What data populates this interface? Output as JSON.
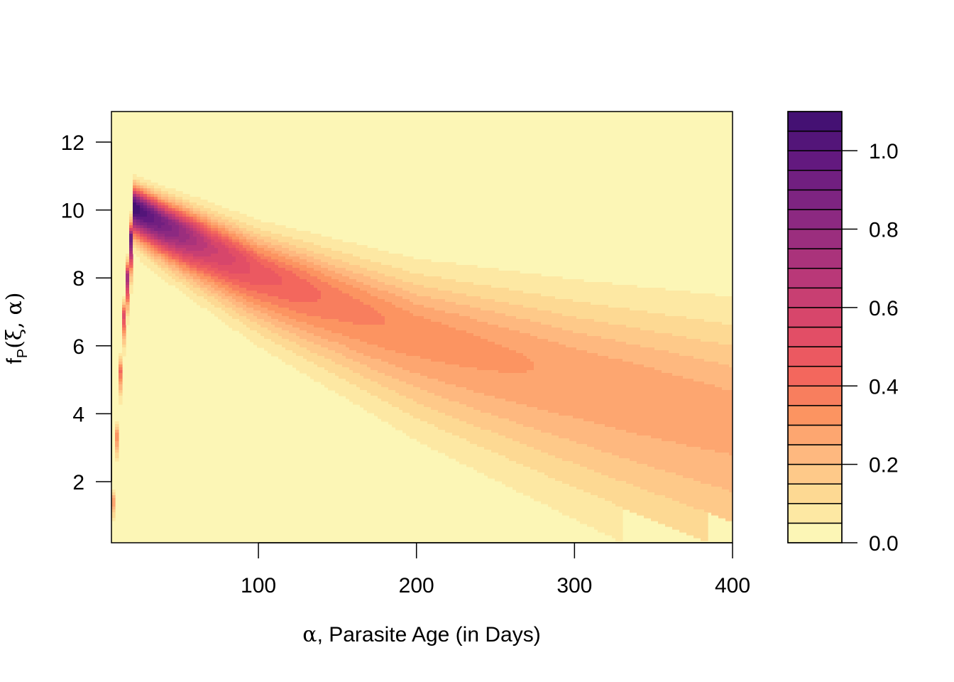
{
  "chart_data": {
    "type": "heatmap",
    "title": "",
    "xlabel": "α, Parasite Age (in Days)",
    "ylabel": "fP(ξ, α)",
    "xlabel_parts": {
      "symbol": "α",
      "rest": ", Parasite Age (in Days)"
    },
    "ylabel_parts": {
      "f": "f",
      "sub": "P",
      "args": "(ξ, α)"
    },
    "xlim": [
      7,
      400
    ],
    "ylim": [
      0.2,
      12.9
    ],
    "x_ticks": [
      100,
      200,
      300,
      400
    ],
    "x_tick_labels": [
      "100",
      "200",
      "300",
      "400"
    ],
    "y_ticks": [
      2,
      4,
      6,
      8,
      10,
      12
    ],
    "y_tick_labels": [
      "2",
      "4",
      "6",
      "8",
      "10",
      "12"
    ],
    "surface": {
      "description_of_values": "filled contour of f_P; ridge rises from 0 at α≈7 to peak ≈1.1 near (α≈22, f≈10), then decays and spreads along a downward-curving ridge",
      "ridge_points": [
        {
          "alpha": 7,
          "f": 0.5,
          "value": 0.25
        },
        {
          "alpha": 14,
          "f": 6.5,
          "value": 0.45
        },
        {
          "alpha": 21,
          "f": 10.1,
          "value": 1.1
        },
        {
          "alpha": 40,
          "f": 9.6,
          "value": 0.9
        },
        {
          "alpha": 70,
          "f": 8.9,
          "value": 0.62
        },
        {
          "alpha": 100,
          "f": 8.2,
          "value": 0.48
        },
        {
          "alpha": 150,
          "f": 7.3,
          "value": 0.38
        },
        {
          "alpha": 200,
          "f": 6.4,
          "value": 0.33
        },
        {
          "alpha": 300,
          "f": 5.1,
          "value": 0.29
        },
        {
          "alpha": 400,
          "f": 3.9,
          "value": 0.27
        }
      ]
    },
    "colorbar": {
      "levels": [
        0.0,
        0.05,
        0.1,
        0.15,
        0.2,
        0.25,
        0.3,
        0.35,
        0.4,
        0.45,
        0.5,
        0.55,
        0.6,
        0.65,
        0.7,
        0.75,
        0.8,
        0.85,
        0.9,
        0.95,
        1.0,
        1.05,
        1.1
      ],
      "tick_values": [
        0.0,
        0.2,
        0.4,
        0.6,
        0.8,
        1.0
      ],
      "tick_labels": [
        "0.0",
        "0.2",
        "0.4",
        "0.6",
        "0.8",
        "1.0"
      ],
      "range": [
        0,
        1.1
      ],
      "palette": "magma-reversed"
    }
  }
}
